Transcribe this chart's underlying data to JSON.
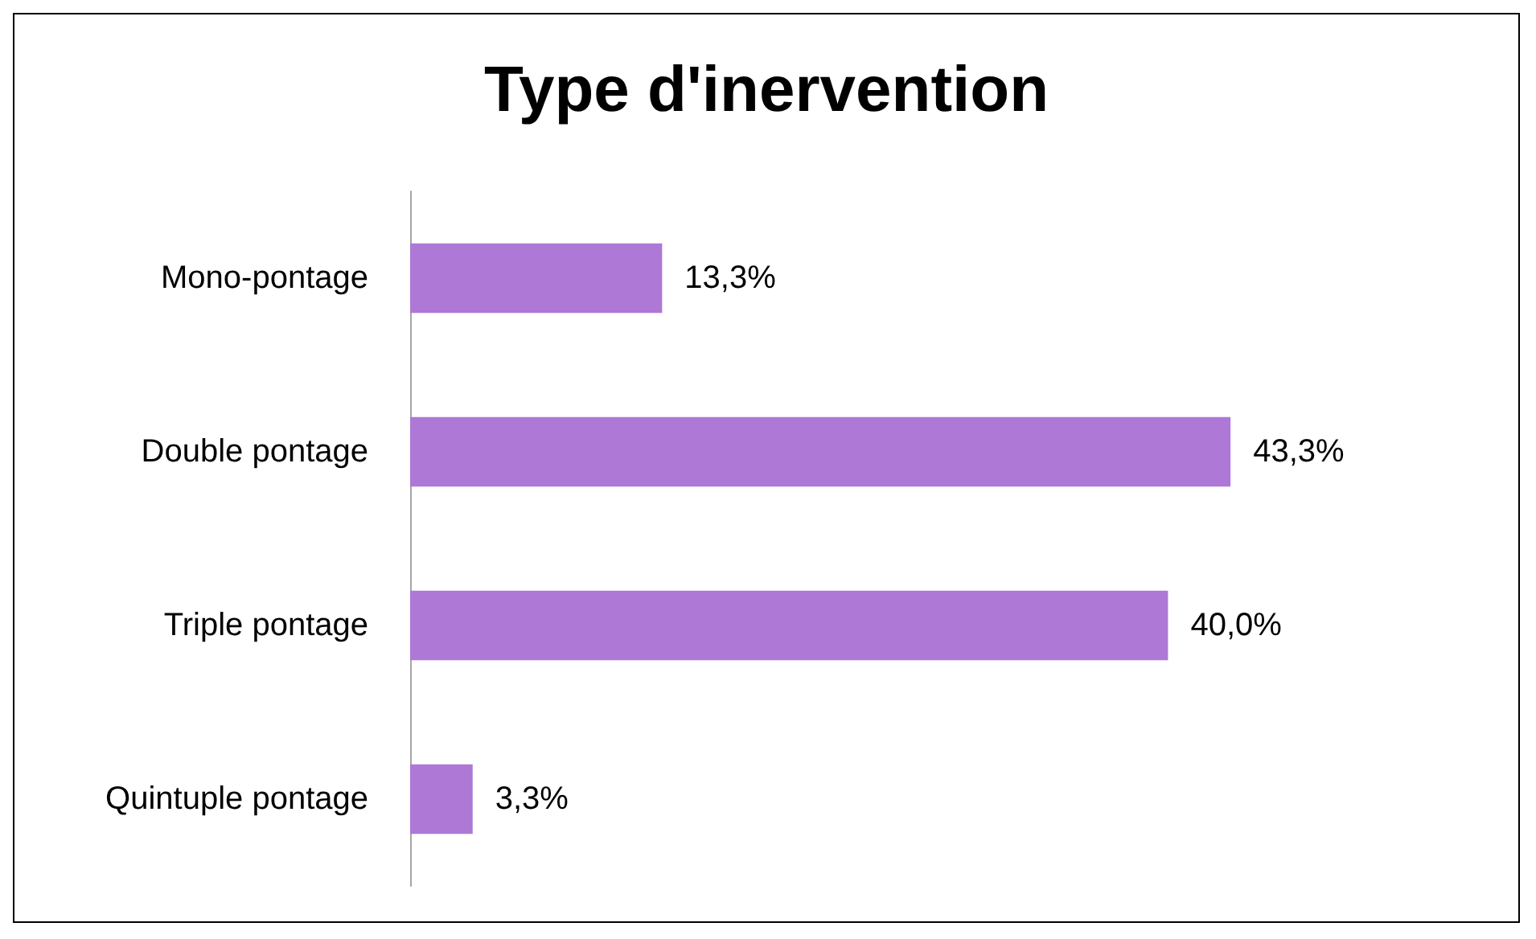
{
  "chart_data": {
    "type": "bar",
    "orientation": "horizontal",
    "title": "Type d'inervention",
    "categories": [
      "Mono-pontage",
      "Double pontage",
      "Triple pontage",
      "Quintuple pontage"
    ],
    "values": [
      13.3,
      43.3,
      40.0,
      3.3
    ],
    "value_labels": [
      "13,3%",
      "43,3%",
      "40,0%",
      "3,3%"
    ],
    "color": "#ad78d6"
  }
}
